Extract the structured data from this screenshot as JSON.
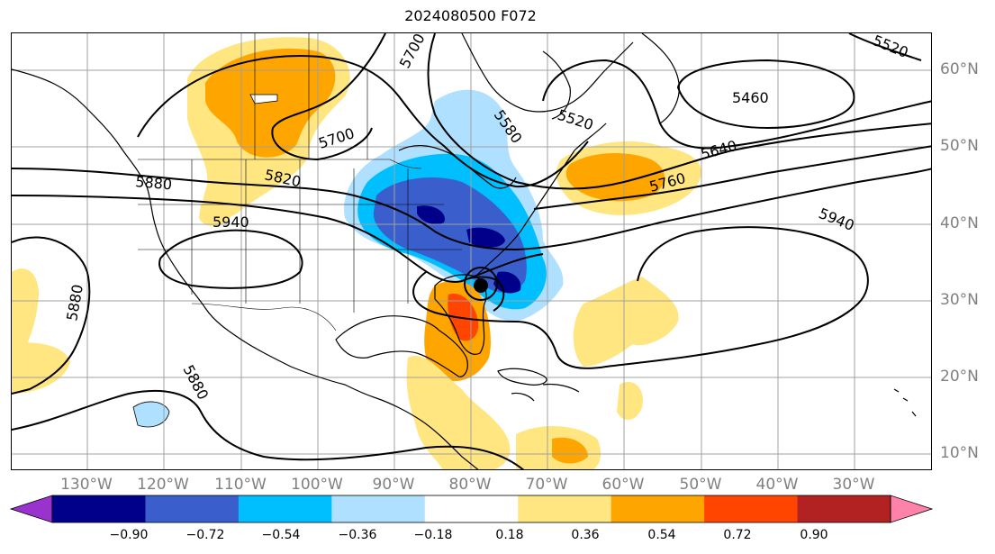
{
  "title": "2024080500 F072",
  "lon_labels": [
    "130°W",
    "120°W",
    "110°W",
    "100°W",
    "90°W",
    "80°W",
    "70°W",
    "60°W",
    "50°W",
    "40°W",
    "30°W"
  ],
  "lat_labels": [
    "60°N",
    "50°N",
    "40°N",
    "30°N",
    "20°N",
    "10°N"
  ],
  "contour_labels": [
    "5700",
    "5580",
    "5520",
    "5460",
    "5520",
    "5640",
    "5760",
    "5700",
    "5820",
    "5880",
    "5940",
    "5940",
    "5880",
    "5880"
  ],
  "colorbar": {
    "ticks": [
      "−0.90",
      "−0.72",
      "−0.54",
      "−0.36",
      "−0.18",
      "0.18",
      "0.36",
      "0.54",
      "0.72",
      "0.90"
    ],
    "colors": [
      "#9a32cd",
      "#00008b",
      "#3a5fcd",
      "#00bfff",
      "#b0e0ff",
      "#ffffff",
      "#ffe680",
      "#ffa500",
      "#ff4500",
      "#b22222",
      "#ff82ab"
    ]
  },
  "colors": {
    "land_outline": "#000000",
    "grid": "#a0a0a0",
    "contour": "#000000",
    "storm_marker": "#000000"
  }
}
